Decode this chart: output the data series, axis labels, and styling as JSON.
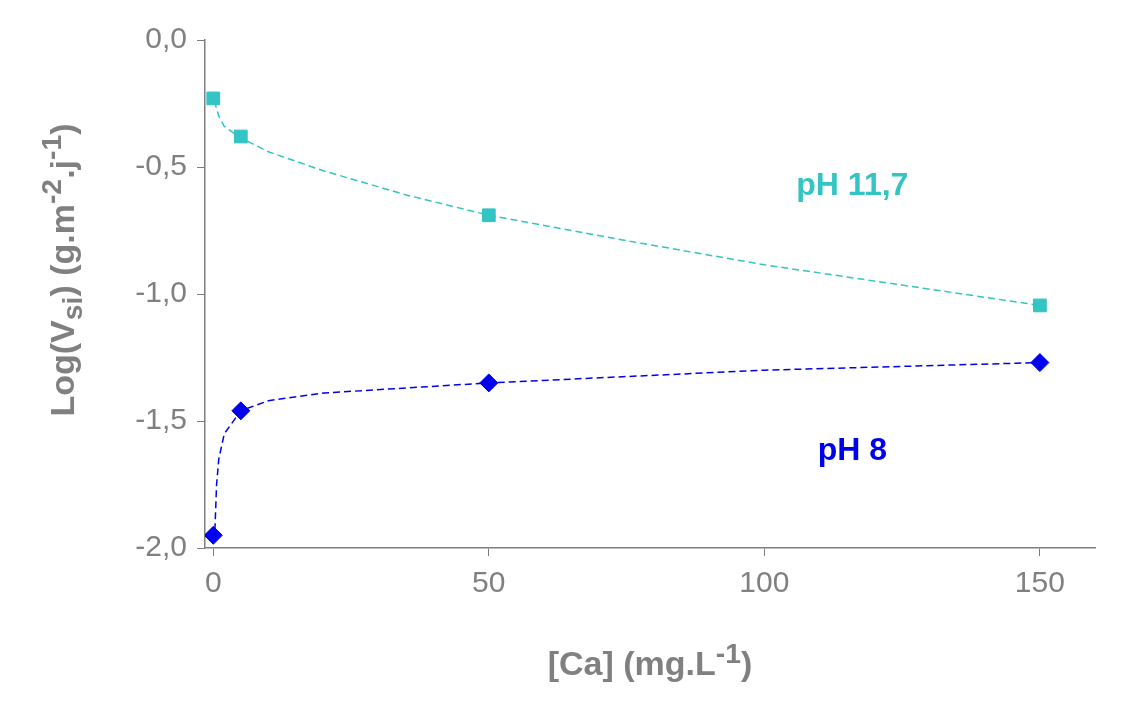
{
  "chart_data": {
    "type": "scatter",
    "xlabel": "[Ca] (mg.L$^{-1}$)",
    "ylabel": "Log(V$_{si}$) (g.m$^{-2}$.j$^{-1}$)",
    "xlim": [
      -1.5,
      160
    ],
    "xticks": [
      0,
      50,
      100,
      150
    ],
    "ylim": [
      -2,
      0
    ],
    "yticks": [
      {
        "value": -2,
        "label": "-2,0"
      },
      {
        "value": -1.5,
        "label": "-1,5"
      },
      {
        "value": -1,
        "label": "-1,0"
      },
      {
        "value": -0.5,
        "label": "-0,5"
      },
      {
        "value": 0,
        "label": "0,0"
      }
    ],
    "grid": false,
    "legend": false,
    "series": [
      {
        "name": "pH 11,7",
        "marker": "square",
        "color": "#33c4c4",
        "x": [
          0,
          5,
          50,
          150
        ],
        "values": [
          -0.23,
          -0.38,
          -0.69,
          -1.045
        ]
      },
      {
        "type": "line",
        "line_style": "dashed",
        "marker": "none",
        "color": "#33c4c4",
        "x": [
          0.2,
          1,
          2,
          5,
          10,
          20,
          35,
          50,
          75,
          100,
          125,
          150
        ],
        "values": [
          -0.24,
          -0.3,
          -0.34,
          -0.385,
          -0.44,
          -0.515,
          -0.61,
          -0.69,
          -0.79,
          -0.885,
          -0.965,
          -1.045
        ]
      },
      {
        "name": "pH 8",
        "marker": "diamond",
        "color": "#0000f0",
        "x": [
          0,
          5,
          50,
          150
        ],
        "values": [
          -1.95,
          -1.46,
          -1.35,
          -1.27
        ]
      },
      {
        "type": "line",
        "line_style": "dashed",
        "marker": "none",
        "color": "#0000f0",
        "x": [
          0.3,
          0.6,
          1,
          2,
          5,
          10,
          20,
          50,
          100,
          150
        ],
        "values": [
          -1.93,
          -1.75,
          -1.65,
          -1.55,
          -1.46,
          -1.42,
          -1.39,
          -1.35,
          -1.3,
          -1.27
        ]
      }
    ]
  }
}
